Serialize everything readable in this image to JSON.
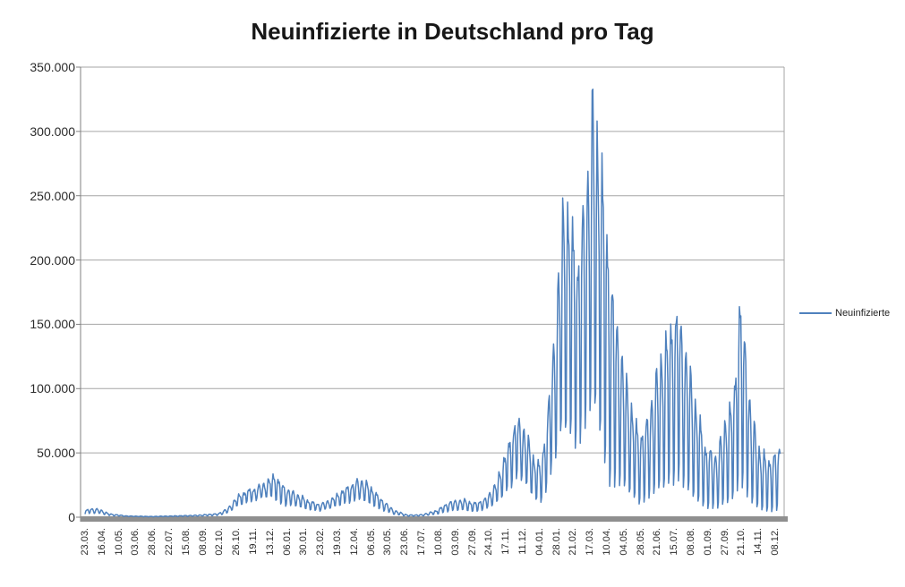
{
  "chart_data": {
    "type": "line",
    "title": "Neuinfizierte in Deutschland pro Tag",
    "legend": {
      "label": "Neuinfizierte",
      "position": "right"
    },
    "series": [
      {
        "name": "Neuinfizierte",
        "color": "#4F81BD"
      }
    ],
    "grid": true,
    "y_axis": {
      "min": 0,
      "max": 350000,
      "step": 50000,
      "tick_labels": [
        "0",
        "50.000",
        "100.000",
        "150.000",
        "200.000",
        "250.000",
        "300.000",
        "350.000"
      ]
    },
    "x_axis": {
      "tick_interval_days": 24,
      "tick_labels": [
        "23.03.",
        "16.04.",
        "10.05.",
        "03.06.",
        "28.06.",
        "22.07.",
        "15.08.",
        "08.09.",
        "02.10.",
        "26.10.",
        "19.11.",
        "13.12.",
        "06.01.",
        "30.01.",
        "23.02.",
        "19.03.",
        "12.04.",
        "06.05.",
        "30.05.",
        "23.06.",
        "17.07.",
        "10.08.",
        "03.09.",
        "27.09.",
        "24.10.",
        "17.11.",
        "11.12.",
        "04.01.",
        "28.01.",
        "21.02.",
        "17.03.",
        "10.04.",
        "04.05.",
        "28.05.",
        "21.06.",
        "15.07.",
        "08.08.",
        "01.09.",
        "27.09.",
        "21.10.",
        "14.11.",
        "08.12."
      ]
    },
    "total_days": 992,
    "weekly_pattern": [
      0.08,
      0.72,
      1.0,
      0.96,
      0.88,
      0.6,
      0.0
    ],
    "upper_envelope": [
      [
        0,
        5000
      ],
      [
        8,
        6800
      ],
      [
        20,
        6200
      ],
      [
        35,
        2600
      ],
      [
        60,
        1000
      ],
      [
        95,
        600
      ],
      [
        130,
        1100
      ],
      [
        160,
        1600
      ],
      [
        190,
        2800
      ],
      [
        205,
        7500
      ],
      [
        215,
        15000
      ],
      [
        228,
        20000
      ],
      [
        245,
        23000
      ],
      [
        262,
        28500
      ],
      [
        270,
        33000
      ],
      [
        280,
        26000
      ],
      [
        288,
        22000
      ],
      [
        300,
        18500
      ],
      [
        320,
        12500
      ],
      [
        335,
        10000
      ],
      [
        350,
        13500
      ],
      [
        370,
        22000
      ],
      [
        392,
        29500
      ],
      [
        405,
        25000
      ],
      [
        420,
        15500
      ],
      [
        440,
        5500
      ],
      [
        460,
        1700
      ],
      [
        480,
        2000
      ],
      [
        500,
        5000
      ],
      [
        520,
        12000
      ],
      [
        540,
        13500
      ],
      [
        555,
        11000
      ],
      [
        570,
        14000
      ],
      [
        585,
        25000
      ],
      [
        600,
        50000
      ],
      [
        615,
        76000
      ],
      [
        625,
        70000
      ],
      [
        640,
        46000
      ],
      [
        650,
        40000
      ],
      [
        660,
        82000
      ],
      [
        672,
        160000
      ],
      [
        683,
        248000
      ],
      [
        695,
        225000
      ],
      [
        703,
        200000
      ],
      [
        715,
        258000
      ],
      [
        724,
        318000
      ],
      [
        731,
        296000
      ],
      [
        740,
        252000
      ],
      [
        750,
        185000
      ],
      [
        762,
        135000
      ],
      [
        775,
        95000
      ],
      [
        790,
        64000
      ],
      [
        800,
        72000
      ],
      [
        815,
        110000
      ],
      [
        832,
        145000
      ],
      [
        845,
        162000
      ],
      [
        856,
        130000
      ],
      [
        870,
        90000
      ],
      [
        885,
        55000
      ],
      [
        900,
        48000
      ],
      [
        915,
        78000
      ],
      [
        926,
        98000
      ],
      [
        933,
        174000
      ],
      [
        940,
        140000
      ],
      [
        950,
        80000
      ],
      [
        962,
        52000
      ],
      [
        975,
        45000
      ],
      [
        985,
        50000
      ],
      [
        991,
        55000
      ]
    ],
    "lower_envelope": [
      [
        0,
        2200
      ],
      [
        8,
        3200
      ],
      [
        20,
        2800
      ],
      [
        35,
        1300
      ],
      [
        60,
        500
      ],
      [
        95,
        300
      ],
      [
        130,
        500
      ],
      [
        160,
        800
      ],
      [
        190,
        1400
      ],
      [
        205,
        3500
      ],
      [
        215,
        8000
      ],
      [
        228,
        11500
      ],
      [
        245,
        13500
      ],
      [
        262,
        16000
      ],
      [
        270,
        15000
      ],
      [
        280,
        10000
      ],
      [
        288,
        9000
      ],
      [
        300,
        8500
      ],
      [
        320,
        6000
      ],
      [
        335,
        5000
      ],
      [
        350,
        7000
      ],
      [
        370,
        11000
      ],
      [
        392,
        13500
      ],
      [
        405,
        11000
      ],
      [
        420,
        6500
      ],
      [
        440,
        2200
      ],
      [
        460,
        700
      ],
      [
        480,
        900
      ],
      [
        500,
        2200
      ],
      [
        520,
        5000
      ],
      [
        540,
        5500
      ],
      [
        555,
        4500
      ],
      [
        570,
        6000
      ],
      [
        585,
        10000
      ],
      [
        600,
        20000
      ],
      [
        615,
        30000
      ],
      [
        625,
        28000
      ],
      [
        640,
        15000
      ],
      [
        650,
        12000
      ],
      [
        660,
        25000
      ],
      [
        672,
        48000
      ],
      [
        683,
        72000
      ],
      [
        695,
        62000
      ],
      [
        703,
        55000
      ],
      [
        715,
        72000
      ],
      [
        724,
        85000
      ],
      [
        731,
        80000
      ],
      [
        740,
        45000
      ],
      [
        750,
        22000
      ],
      [
        762,
        25000
      ],
      [
        775,
        20000
      ],
      [
        790,
        11000
      ],
      [
        800,
        13000
      ],
      [
        815,
        20000
      ],
      [
        832,
        26000
      ],
      [
        845,
        29000
      ],
      [
        856,
        22000
      ],
      [
        870,
        14000
      ],
      [
        885,
        7500
      ],
      [
        900,
        6500
      ],
      [
        915,
        11000
      ],
      [
        926,
        15000
      ],
      [
        933,
        28000
      ],
      [
        940,
        20000
      ],
      [
        950,
        11000
      ],
      [
        962,
        6000
      ],
      [
        975,
        4500
      ],
      [
        985,
        5000
      ],
      [
        991,
        7000
      ]
    ],
    "colors": {
      "series_line": "#4F81BD",
      "gridline": "#A6A6A6",
      "axis_line": "#808080",
      "baseline_bar": "#8F8F8F",
      "label_text": "#2b2b2b",
      "title_text": "#171717",
      "background": "#FFFFFF"
    }
  }
}
